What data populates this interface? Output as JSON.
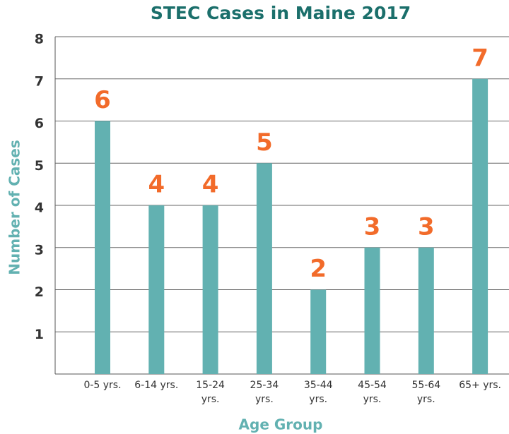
{
  "chart_data": {
    "type": "bar",
    "title": "STEC Cases in Maine 2017",
    "x_label": "Age Group",
    "y_label": "Number of Cases",
    "categories": [
      "0-5 yrs.",
      "6-14 yrs.",
      "15-24 yrs.",
      "25-34 yrs.",
      "35-44 yrs.",
      "45-54 yrs.",
      "55-64 yrs.",
      "65+ yrs."
    ],
    "values": [
      6,
      4,
      4,
      5,
      2,
      3,
      3,
      7
    ],
    "color": "#62b1b1",
    "label_color": "#f26b2a",
    "ylim": [
      0,
      8
    ],
    "yticks": [
      1,
      2,
      3,
      4,
      5,
      6,
      7,
      8
    ],
    "grid": true
  }
}
